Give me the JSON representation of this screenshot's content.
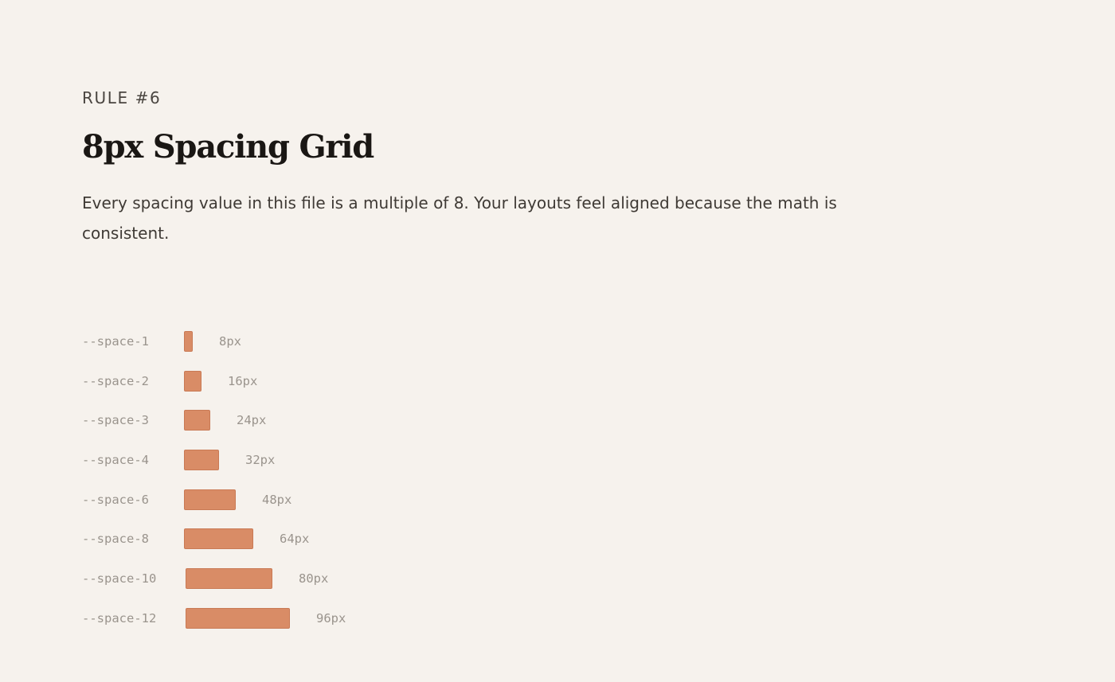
{
  "section": {
    "eyebrow": "RULE #6",
    "title": "8px Spacing Grid",
    "description": "Every spacing value in this file is a multiple of 8. Your layouts feel aligned because the math is consistent."
  },
  "spacing_scale": [
    {
      "token": "--space-1",
      "value": 8,
      "label": "8px"
    },
    {
      "token": "--space-2",
      "value": 16,
      "label": "16px"
    },
    {
      "token": "--space-3",
      "value": 24,
      "label": "24px"
    },
    {
      "token": "--space-4",
      "value": 32,
      "label": "32px"
    },
    {
      "token": "--space-6",
      "value": 48,
      "label": "48px"
    },
    {
      "token": "--space-8",
      "value": 64,
      "label": "64px"
    },
    {
      "token": "--space-10",
      "value": 80,
      "label": "80px"
    },
    {
      "token": "--space-12",
      "value": 96,
      "label": "96px"
    }
  ],
  "colors": {
    "background": "#f6f2ed",
    "bar_fill": "#d98c66",
    "bar_border": "#c97a55",
    "muted_text": "#9a948d"
  }
}
